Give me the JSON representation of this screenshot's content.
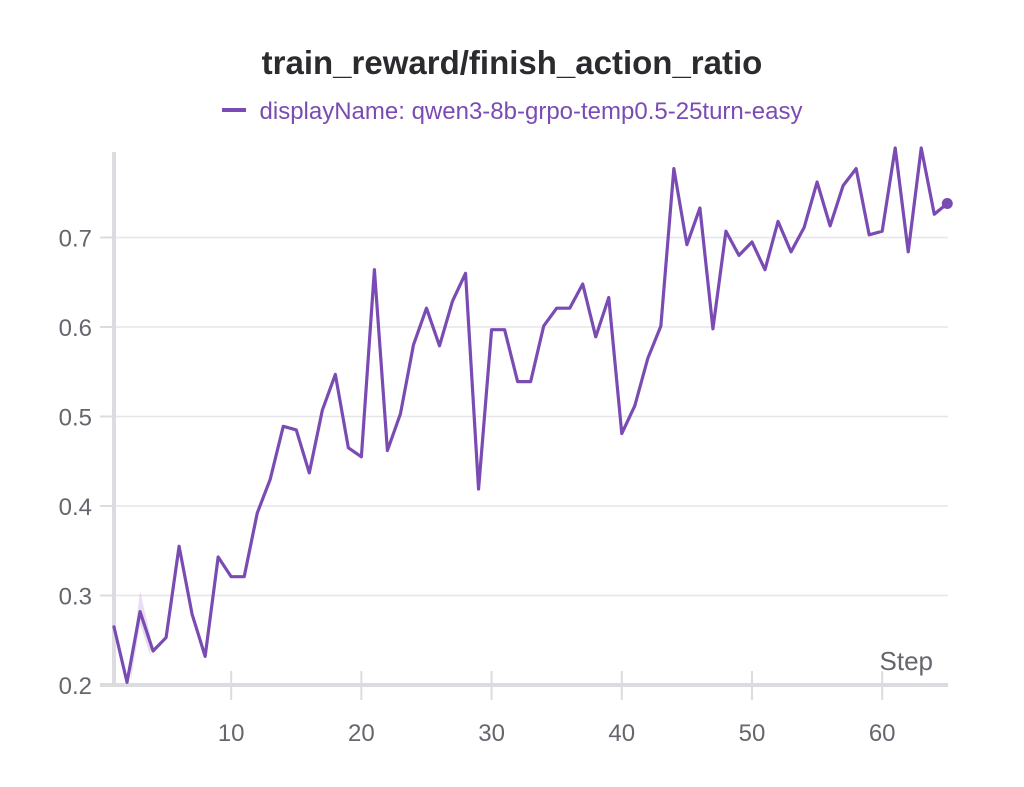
{
  "chart_data": {
    "type": "line",
    "title": "train_reward/finish_action_ratio",
    "legend": {
      "label": "displayName: qwen3-8b-grpo-temp0.5-25turn-easy",
      "placement": "top"
    },
    "xlabel": "Step",
    "ylabel": "",
    "xlim": [
      1,
      65
    ],
    "ylim": [
      0.2,
      0.8
    ],
    "xticks": [
      10,
      20,
      30,
      40,
      50,
      60
    ],
    "yticks": [
      0.2,
      0.3,
      0.4,
      0.5,
      0.6,
      0.7
    ],
    "grid": true,
    "color": "#7a4cb3",
    "series": [
      {
        "name": "qwen3-8b-grpo-temp0.5-25turn-easy",
        "x": [
          1,
          2,
          3,
          4,
          5,
          6,
          7,
          8,
          9,
          10,
          11,
          12,
          13,
          14,
          15,
          16,
          17,
          18,
          19,
          20,
          21,
          22,
          23,
          24,
          25,
          26,
          27,
          28,
          29,
          30,
          31,
          32,
          33,
          34,
          35,
          36,
          37,
          38,
          39,
          40,
          41,
          42,
          43,
          44,
          45,
          46,
          47,
          48,
          49,
          50,
          51,
          52,
          53,
          54,
          55,
          56,
          57,
          58,
          59,
          60,
          61,
          62,
          63,
          64,
          65
        ],
        "values": [
          0.265,
          0.203,
          0.282,
          0.238,
          0.253,
          0.355,
          0.279,
          0.232,
          0.343,
          0.321,
          0.321,
          0.392,
          0.43,
          0.489,
          0.485,
          0.437,
          0.507,
          0.547,
          0.465,
          0.455,
          0.664,
          0.462,
          0.503,
          0.58,
          0.621,
          0.579,
          0.629,
          0.66,
          0.419,
          0.597,
          0.597,
          0.539,
          0.539,
          0.601,
          0.621,
          0.621,
          0.648,
          0.589,
          0.633,
          0.481,
          0.512,
          0.565,
          0.601,
          0.777,
          0.692,
          0.733,
          0.598,
          0.707,
          0.68,
          0.695,
          0.664,
          0.718,
          0.684,
          0.711,
          0.762,
          0.713,
          0.758,
          0.777,
          0.703,
          0.707,
          0.8,
          0.684,
          0.8,
          0.726,
          0.738
        ]
      }
    ]
  }
}
